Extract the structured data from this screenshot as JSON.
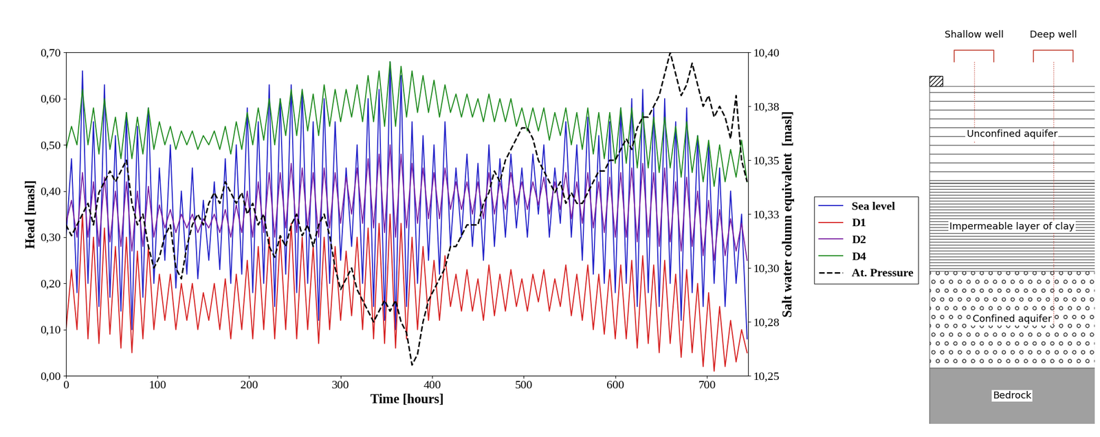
{
  "chart_data": {
    "type": "line",
    "xlabel": "Time [hours]",
    "ylabel": "Head [masl]",
    "y2label": "Salt water column equivalent  [masl]",
    "xlim": [
      0,
      745
    ],
    "xticks": [
      0,
      100,
      200,
      300,
      400,
      500,
      600,
      700
    ],
    "ylim": [
      0.0,
      0.7
    ],
    "yticks": [
      {
        "value": 0.0,
        "label": "0,00"
      },
      {
        "value": 0.1,
        "label": "0,10"
      },
      {
        "value": 0.2,
        "label": "0,20"
      },
      {
        "value": 0.3,
        "label": "0,30"
      },
      {
        "value": 0.4,
        "label": "0,40"
      },
      {
        "value": 0.5,
        "label": "0,50"
      },
      {
        "value": 0.6,
        "label": "0,60"
      },
      {
        "value": 0.7,
        "label": "0,70"
      }
    ],
    "y2lim": [
      10.25,
      10.4
    ],
    "y2ticks": [
      {
        "value": 10.25,
        "label": "10,25"
      },
      {
        "value": 10.275,
        "label": "10,28"
      },
      {
        "value": 10.3,
        "label": "10,30"
      },
      {
        "value": 10.325,
        "label": "10,33"
      },
      {
        "value": 10.35,
        "label": "10,35"
      },
      {
        "value": 10.375,
        "label": "10,38"
      },
      {
        "value": 10.4,
        "label": "10,40"
      }
    ],
    "legend": "right",
    "grid": false,
    "x": [
      0,
      6,
      12,
      18,
      24,
      30,
      36,
      42,
      48,
      54,
      60,
      66,
      72,
      78,
      84,
      90,
      96,
      102,
      108,
      114,
      120,
      126,
      132,
      138,
      144,
      150,
      156,
      162,
      168,
      174,
      180,
      186,
      192,
      198,
      204,
      210,
      216,
      222,
      228,
      234,
      240,
      246,
      252,
      258,
      264,
      270,
      276,
      282,
      288,
      294,
      300,
      306,
      312,
      318,
      324,
      330,
      336,
      342,
      348,
      354,
      360,
      366,
      372,
      378,
      384,
      390,
      396,
      402,
      408,
      414,
      420,
      426,
      432,
      438,
      444,
      450,
      456,
      462,
      468,
      474,
      480,
      486,
      492,
      498,
      504,
      510,
      516,
      522,
      528,
      534,
      540,
      546,
      552,
      558,
      564,
      570,
      576,
      582,
      588,
      594,
      600,
      606,
      612,
      618,
      624,
      630,
      636,
      642,
      648,
      654,
      660,
      666,
      672,
      678,
      684,
      690,
      696,
      702,
      708,
      714,
      720,
      726,
      732,
      738,
      744
    ],
    "series": [
      {
        "name": "Sea level",
        "color": "#2020c8",
        "line_style": "solid",
        "values": [
          0.3,
          0.47,
          0.18,
          0.66,
          0.2,
          0.55,
          0.15,
          0.63,
          0.17,
          0.52,
          0.14,
          0.57,
          0.1,
          0.54,
          0.17,
          0.58,
          0.2,
          0.45,
          0.25,
          0.5,
          0.19,
          0.4,
          0.22,
          0.45,
          0.21,
          0.38,
          0.25,
          0.42,
          0.23,
          0.47,
          0.2,
          0.5,
          0.22,
          0.58,
          0.18,
          0.55,
          0.2,
          0.63,
          0.15,
          0.6,
          0.22,
          0.63,
          0.18,
          0.62,
          0.2,
          0.55,
          0.12,
          0.6,
          0.2,
          0.55,
          0.25,
          0.45,
          0.28,
          0.5,
          0.2,
          0.6,
          0.15,
          0.62,
          0.12,
          0.68,
          0.1,
          0.65,
          0.15,
          0.55,
          0.2,
          0.52,
          0.25,
          0.5,
          0.22,
          0.55,
          0.28,
          0.45,
          0.3,
          0.48,
          0.28,
          0.46,
          0.25,
          0.5,
          0.28,
          0.47,
          0.3,
          0.48,
          0.32,
          0.45,
          0.3,
          0.48,
          0.35,
          0.5,
          0.3,
          0.45,
          0.33,
          0.55,
          0.3,
          0.5,
          0.25,
          0.56,
          0.22,
          0.52,
          0.2,
          0.55,
          0.18,
          0.58,
          0.2,
          0.6,
          0.15,
          0.62,
          0.18,
          0.58,
          0.15,
          0.6,
          0.2,
          0.55,
          0.12,
          0.58,
          0.18,
          0.52,
          0.15,
          0.5,
          0.2,
          0.45,
          0.15,
          0.4,
          0.2,
          0.35,
          0.08
        ]
      },
      {
        "name": "D1",
        "color": "#d62020",
        "line_style": "solid",
        "values": [
          0.1,
          0.23,
          0.1,
          0.35,
          0.08,
          0.3,
          0.07,
          0.32,
          0.09,
          0.28,
          0.06,
          0.3,
          0.05,
          0.27,
          0.08,
          0.28,
          0.1,
          0.22,
          0.12,
          0.22,
          0.1,
          0.2,
          0.12,
          0.2,
          0.1,
          0.18,
          0.12,
          0.2,
          0.1,
          0.21,
          0.08,
          0.22,
          0.1,
          0.25,
          0.08,
          0.28,
          0.1,
          0.3,
          0.08,
          0.3,
          0.1,
          0.33,
          0.08,
          0.3,
          0.1,
          0.28,
          0.07,
          0.3,
          0.1,
          0.28,
          0.12,
          0.27,
          0.13,
          0.3,
          0.1,
          0.32,
          0.08,
          0.33,
          0.07,
          0.35,
          0.06,
          0.33,
          0.08,
          0.3,
          0.1,
          0.28,
          0.12,
          0.25,
          0.12,
          0.26,
          0.15,
          0.22,
          0.14,
          0.23,
          0.14,
          0.21,
          0.12,
          0.24,
          0.13,
          0.22,
          0.14,
          0.23,
          0.15,
          0.21,
          0.14,
          0.22,
          0.16,
          0.23,
          0.14,
          0.21,
          0.15,
          0.24,
          0.13,
          0.22,
          0.12,
          0.24,
          0.1,
          0.22,
          0.09,
          0.23,
          0.08,
          0.24,
          0.08,
          0.25,
          0.06,
          0.26,
          0.07,
          0.24,
          0.05,
          0.25,
          0.07,
          0.22,
          0.04,
          0.23,
          0.05,
          0.2,
          0.02,
          0.18,
          0.01,
          0.15,
          0.02,
          0.12,
          0.03,
          0.1,
          0.05
        ]
      },
      {
        "name": "D2",
        "color": "#7a1fa2",
        "line_style": "solid",
        "values": [
          0.33,
          0.38,
          0.3,
          0.44,
          0.3,
          0.42,
          0.28,
          0.43,
          0.29,
          0.4,
          0.28,
          0.42,
          0.27,
          0.4,
          0.28,
          0.41,
          0.3,
          0.37,
          0.32,
          0.36,
          0.31,
          0.35,
          0.32,
          0.35,
          0.31,
          0.34,
          0.32,
          0.35,
          0.31,
          0.36,
          0.3,
          0.37,
          0.31,
          0.4,
          0.3,
          0.42,
          0.31,
          0.44,
          0.3,
          0.44,
          0.32,
          0.46,
          0.31,
          0.45,
          0.32,
          0.44,
          0.3,
          0.45,
          0.32,
          0.44,
          0.33,
          0.43,
          0.35,
          0.45,
          0.33,
          0.47,
          0.32,
          0.48,
          0.31,
          0.5,
          0.3,
          0.48,
          0.32,
          0.46,
          0.33,
          0.45,
          0.34,
          0.44,
          0.34,
          0.45,
          0.36,
          0.42,
          0.36,
          0.42,
          0.35,
          0.42,
          0.34,
          0.44,
          0.35,
          0.42,
          0.36,
          0.44,
          0.37,
          0.42,
          0.36,
          0.42,
          0.37,
          0.43,
          0.35,
          0.42,
          0.36,
          0.44,
          0.34,
          0.42,
          0.33,
          0.44,
          0.32,
          0.42,
          0.31,
          0.43,
          0.3,
          0.44,
          0.3,
          0.45,
          0.29,
          0.46,
          0.3,
          0.44,
          0.28,
          0.45,
          0.29,
          0.42,
          0.27,
          0.43,
          0.28,
          0.4,
          0.26,
          0.38,
          0.25,
          0.36,
          0.26,
          0.34,
          0.27,
          0.33,
          0.25
        ]
      },
      {
        "name": "D4",
        "color": "#1e8a1e",
        "line_style": "solid",
        "values": [
          0.49,
          0.54,
          0.5,
          0.62,
          0.5,
          0.58,
          0.48,
          0.6,
          0.49,
          0.56,
          0.47,
          0.57,
          0.47,
          0.56,
          0.48,
          0.58,
          0.49,
          0.55,
          0.5,
          0.54,
          0.49,
          0.53,
          0.5,
          0.53,
          0.49,
          0.52,
          0.5,
          0.53,
          0.49,
          0.54,
          0.48,
          0.55,
          0.49,
          0.57,
          0.5,
          0.58,
          0.51,
          0.6,
          0.5,
          0.6,
          0.52,
          0.62,
          0.52,
          0.62,
          0.53,
          0.61,
          0.52,
          0.63,
          0.54,
          0.62,
          0.55,
          0.62,
          0.56,
          0.63,
          0.55,
          0.65,
          0.55,
          0.66,
          0.54,
          0.68,
          0.54,
          0.67,
          0.56,
          0.66,
          0.57,
          0.65,
          0.57,
          0.64,
          0.56,
          0.63,
          0.57,
          0.61,
          0.56,
          0.61,
          0.56,
          0.6,
          0.55,
          0.61,
          0.55,
          0.6,
          0.55,
          0.6,
          0.54,
          0.58,
          0.53,
          0.58,
          0.53,
          0.58,
          0.51,
          0.57,
          0.52,
          0.58,
          0.5,
          0.57,
          0.49,
          0.58,
          0.48,
          0.57,
          0.47,
          0.57,
          0.46,
          0.58,
          0.46,
          0.58,
          0.45,
          0.57,
          0.45,
          0.56,
          0.44,
          0.56,
          0.45,
          0.54,
          0.43,
          0.55,
          0.44,
          0.52,
          0.42,
          0.51,
          0.41,
          0.5,
          0.42,
          0.49,
          0.43,
          0.51,
          0.42
        ]
      },
      {
        "name": "At. Pressure",
        "color": "#000000",
        "line_style": "dashed",
        "axis": "y2",
        "values": [
          10.32,
          10.315,
          10.32,
          10.325,
          10.33,
          10.32,
          10.335,
          10.34,
          10.345,
          10.34,
          10.345,
          10.35,
          10.33,
          10.32,
          10.325,
          10.31,
          10.3,
          10.305,
          10.315,
          10.32,
          10.3,
          10.295,
          10.31,
          10.32,
          10.325,
          10.32,
          10.33,
          10.335,
          10.33,
          10.34,
          10.335,
          10.33,
          10.335,
          10.325,
          10.33,
          10.32,
          10.325,
          10.31,
          10.305,
          10.315,
          10.31,
          10.32,
          10.325,
          10.315,
          10.32,
          10.31,
          10.32,
          10.325,
          10.315,
          10.3,
          10.29,
          10.295,
          10.3,
          10.29,
          10.285,
          10.28,
          10.275,
          10.28,
          10.285,
          10.28,
          10.285,
          10.275,
          10.27,
          10.255,
          10.26,
          10.275,
          10.285,
          10.29,
          10.295,
          10.3,
          10.31,
          10.31,
          10.315,
          10.32,
          10.32,
          10.32,
          10.33,
          10.335,
          10.345,
          10.34,
          10.35,
          10.355,
          10.36,
          10.365,
          10.365,
          10.36,
          10.35,
          10.345,
          10.34,
          10.335,
          10.34,
          10.33,
          10.335,
          10.33,
          10.33,
          10.335,
          10.34,
          10.345,
          10.345,
          10.35,
          10.35,
          10.355,
          10.36,
          10.355,
          10.365,
          10.37,
          10.37,
          10.375,
          10.38,
          10.39,
          10.4,
          10.39,
          10.38,
          10.385,
          10.395,
          10.385,
          10.375,
          10.38,
          10.37,
          10.375,
          10.37,
          10.36,
          10.38,
          10.35,
          10.34
        ]
      }
    ]
  },
  "diagram": {
    "wells": [
      "Shallow well",
      "Deep well"
    ],
    "layers": [
      "Unconfined aquifer",
      "Impermeable layer of clay",
      "Confined aquifer",
      "Bedrock"
    ]
  }
}
